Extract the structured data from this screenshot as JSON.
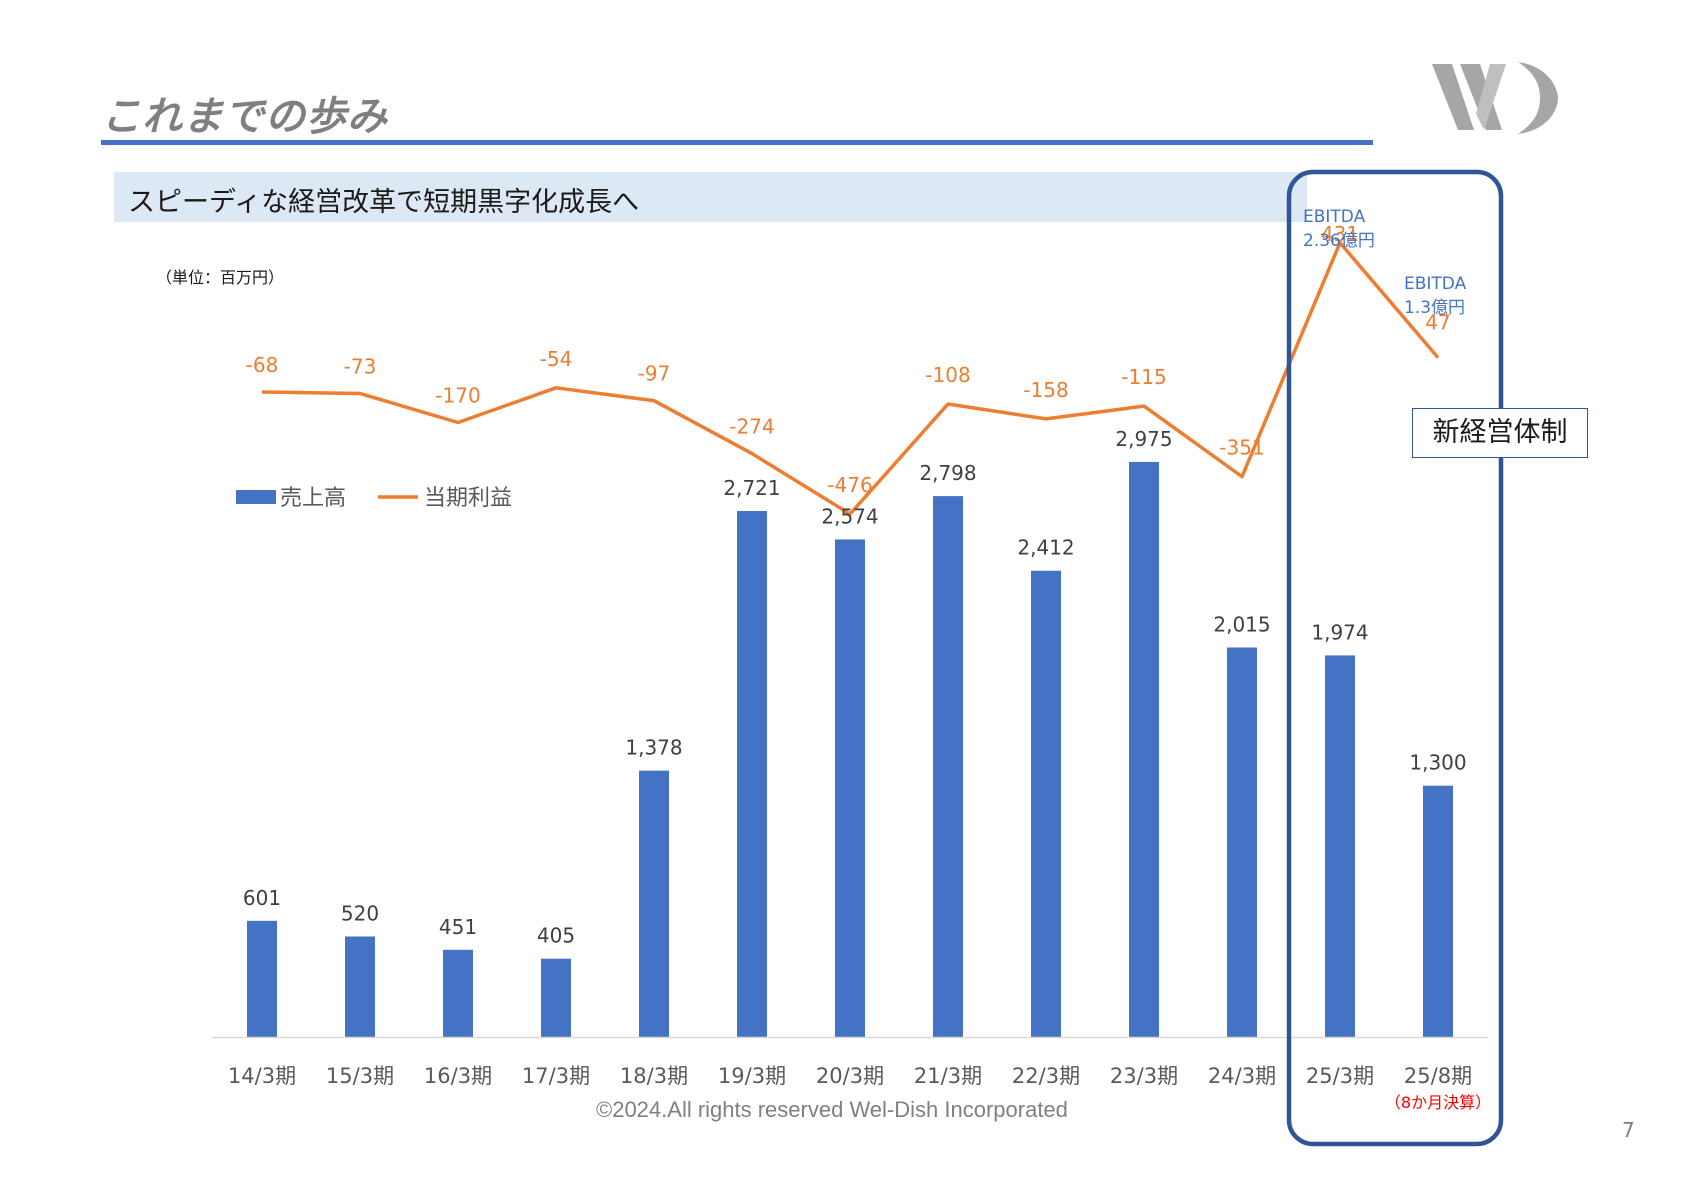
{
  "page": {
    "title": "これまでの歩み",
    "subtitle": "スピーディな経営改革で短期黒字化成長へ",
    "unit": "（単位：百万円）",
    "new_management_label": "新経営体制",
    "copyright": "©2024.All rights reserved Wel-Dish Incorporated",
    "page_number": "7"
  },
  "colors": {
    "bar": "#4472c4",
    "line": "#ed7d31",
    "title_rule": "#4472c4",
    "highlight_frame": "#2f5597",
    "subtitle_band": "#dde8f5"
  },
  "chart_data": {
    "type": "bar",
    "categories": [
      "14/3期",
      "15/3期",
      "16/3期",
      "17/3期",
      "18/3期",
      "19/3期",
      "20/3期",
      "21/3期",
      "22/3期",
      "23/3期",
      "24/3期",
      "25/3期",
      "25/8期"
    ],
    "series": [
      {
        "name": "売上高",
        "type": "bar",
        "values": [
          601,
          520,
          451,
          405,
          1378,
          2721,
          2574,
          2798,
          2412,
          2975,
          2015,
          1974,
          1300
        ],
        "labels": [
          "601",
          "520",
          "451",
          "405",
          "1,378",
          "2,721",
          "2,574",
          "2,798",
          "2,412",
          "2,975",
          "2,015",
          "1,974",
          "1,300"
        ]
      },
      {
        "name": "当期利益",
        "type": "line",
        "values": [
          -68,
          -73,
          -170,
          -54,
          -97,
          -274,
          -476,
          -108,
          -158,
          -115,
          -351,
          431,
          47
        ],
        "labels": [
          "-68",
          "-73",
          "-170",
          "-54",
          "-97",
          "-274",
          "-476",
          "-108",
          "-158",
          "-115",
          "-351",
          "431",
          "47"
        ]
      }
    ],
    "legend": {
      "placement": "upper-left",
      "entries": [
        "売上高",
        "当期利益"
      ]
    },
    "annotations": [
      {
        "category": "25/3期",
        "lines": [
          "EBITDA",
          "2.36億円"
        ]
      },
      {
        "category": "25/8期",
        "lines": [
          "EBITDA",
          "1.3億円"
        ]
      },
      {
        "category": "25/8期",
        "note": "（8か月決算）"
      }
    ],
    "highlighted_categories": [
      "25/3期",
      "25/8期"
    ],
    "bar_ylim": [
      0,
      3000
    ],
    "line_ylim": [
      -500,
      450
    ],
    "grid": false
  }
}
